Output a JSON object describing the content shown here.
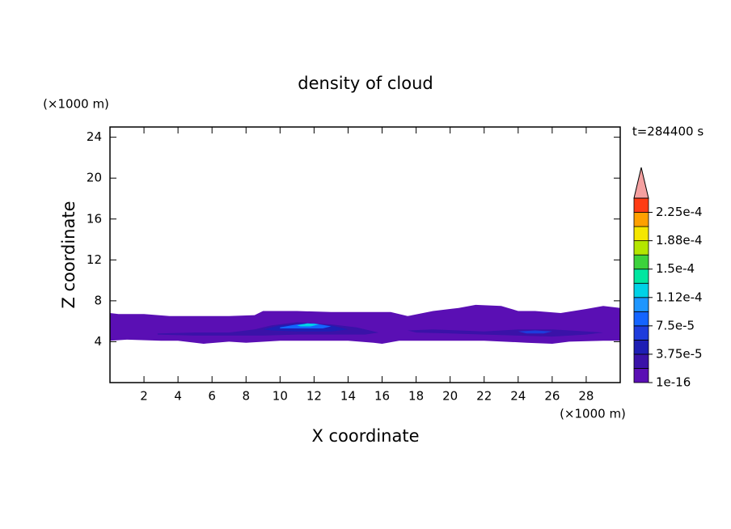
{
  "chart_data": {
    "type": "contour",
    "title": "density of cloud",
    "xlabel": "X coordinate",
    "ylabel": "Z coordinate",
    "xunit": "(×1000 m)",
    "yunit": "(×1000 m)",
    "annotation": "t=284400 s",
    "xlim": [
      0,
      30
    ],
    "ylim": [
      0,
      25
    ],
    "xticks": [
      2,
      4,
      6,
      8,
      10,
      12,
      14,
      16,
      18,
      20,
      22,
      24,
      26,
      28
    ],
    "yticks": [
      4,
      8,
      12,
      16,
      20,
      24
    ],
    "clim": [
      1e-16,
      0.00024375
    ],
    "cticks": [
      {
        "value": 1e-16,
        "label": "1e-16"
      },
      {
        "value": 3.75e-05,
        "label": "3.75e-5"
      },
      {
        "value": 7.5e-05,
        "label": "7.5e-5"
      },
      {
        "value": 0.0001125,
        "label": "1.12e-4"
      },
      {
        "value": 0.00015,
        "label": "1.5e-4"
      },
      {
        "value": 0.0001875,
        "label": "1.88e-4"
      },
      {
        "value": 0.000225,
        "label": "2.25e-4"
      }
    ],
    "colors": [
      "#5a0fb4",
      "#3a12a8",
      "#1e1eb4",
      "#1e3cdc",
      "#1464ff",
      "#1e96ff",
      "#00d2e6",
      "#00e6a0",
      "#3cd23c",
      "#b4e600",
      "#f5e600",
      "#ffa000",
      "#ff3c14"
    ],
    "over_color": "#f4a0a0",
    "regions": [
      {
        "level": 0,
        "x": [
          0,
          0.5,
          2,
          3.5,
          5,
          7,
          8.5,
          9,
          11,
          13,
          15,
          16.5,
          17.5,
          19,
          20.5,
          21.5,
          23,
          24,
          25,
          26.5,
          28,
          29,
          30,
          30,
          29,
          27,
          26,
          24.5,
          22,
          20,
          17,
          16,
          15.5,
          14,
          12,
          10,
          8,
          7,
          5.5,
          4,
          3,
          1,
          0
        ],
        "y": [
          6.8,
          6.7,
          6.7,
          6.5,
          6.5,
          6.5,
          6.6,
          7.0,
          7.0,
          6.9,
          6.9,
          6.9,
          6.5,
          7.0,
          7.3,
          7.6,
          7.5,
          7.0,
          7.0,
          6.8,
          7.2,
          7.5,
          7.3,
          4.1,
          4.1,
          4.0,
          3.8,
          3.9,
          4.1,
          4.1,
          4.1,
          3.8,
          3.9,
          4.1,
          4.1,
          4.1,
          3.9,
          4.0,
          3.8,
          4.1,
          4.1,
          4.2,
          4.1
        ]
      },
      {
        "level": 1,
        "x": [
          2.8,
          5,
          7,
          8.5,
          9.5,
          11,
          13,
          14.5,
          15.8,
          15,
          13,
          11,
          9,
          7,
          5,
          2.8
        ],
        "y": [
          4.8,
          4.9,
          4.9,
          5.2,
          5.6,
          5.9,
          5.7,
          5.4,
          4.9,
          4.7,
          4.7,
          4.7,
          4.6,
          4.6,
          4.6,
          4.7
        ]
      },
      {
        "level": 1,
        "x": [
          17.5,
          19,
          22,
          24,
          26,
          28,
          29,
          28,
          26,
          24,
          22,
          20,
          18
        ],
        "y": [
          5.1,
          5.2,
          5.0,
          5.2,
          5.2,
          5.0,
          4.9,
          4.7,
          4.5,
          4.6,
          4.7,
          4.8,
          4.9
        ]
      },
      {
        "level": 2,
        "x": [
          9,
          10,
          11.5,
          13,
          14,
          13,
          11,
          9.5
        ],
        "y": [
          5.2,
          5.6,
          5.8,
          5.6,
          5.2,
          5.0,
          5.0,
          5.1
        ]
      },
      {
        "level": 3,
        "x": [
          24,
          25,
          26,
          25.5,
          24.5
        ],
        "y": [
          5.0,
          5.1,
          5.0,
          4.8,
          4.8
        ]
      },
      {
        "level": 4,
        "x": [
          10,
          11,
          12,
          13,
          12.5,
          11,
          10
        ],
        "y": [
          5.4,
          5.7,
          5.8,
          5.5,
          5.3,
          5.3,
          5.3
        ]
      },
      {
        "level": 6,
        "x": [
          11,
          11.6,
          12.3,
          11.8,
          11.2
        ],
        "y": [
          5.6,
          5.8,
          5.7,
          5.5,
          5.5
        ]
      }
    ]
  }
}
